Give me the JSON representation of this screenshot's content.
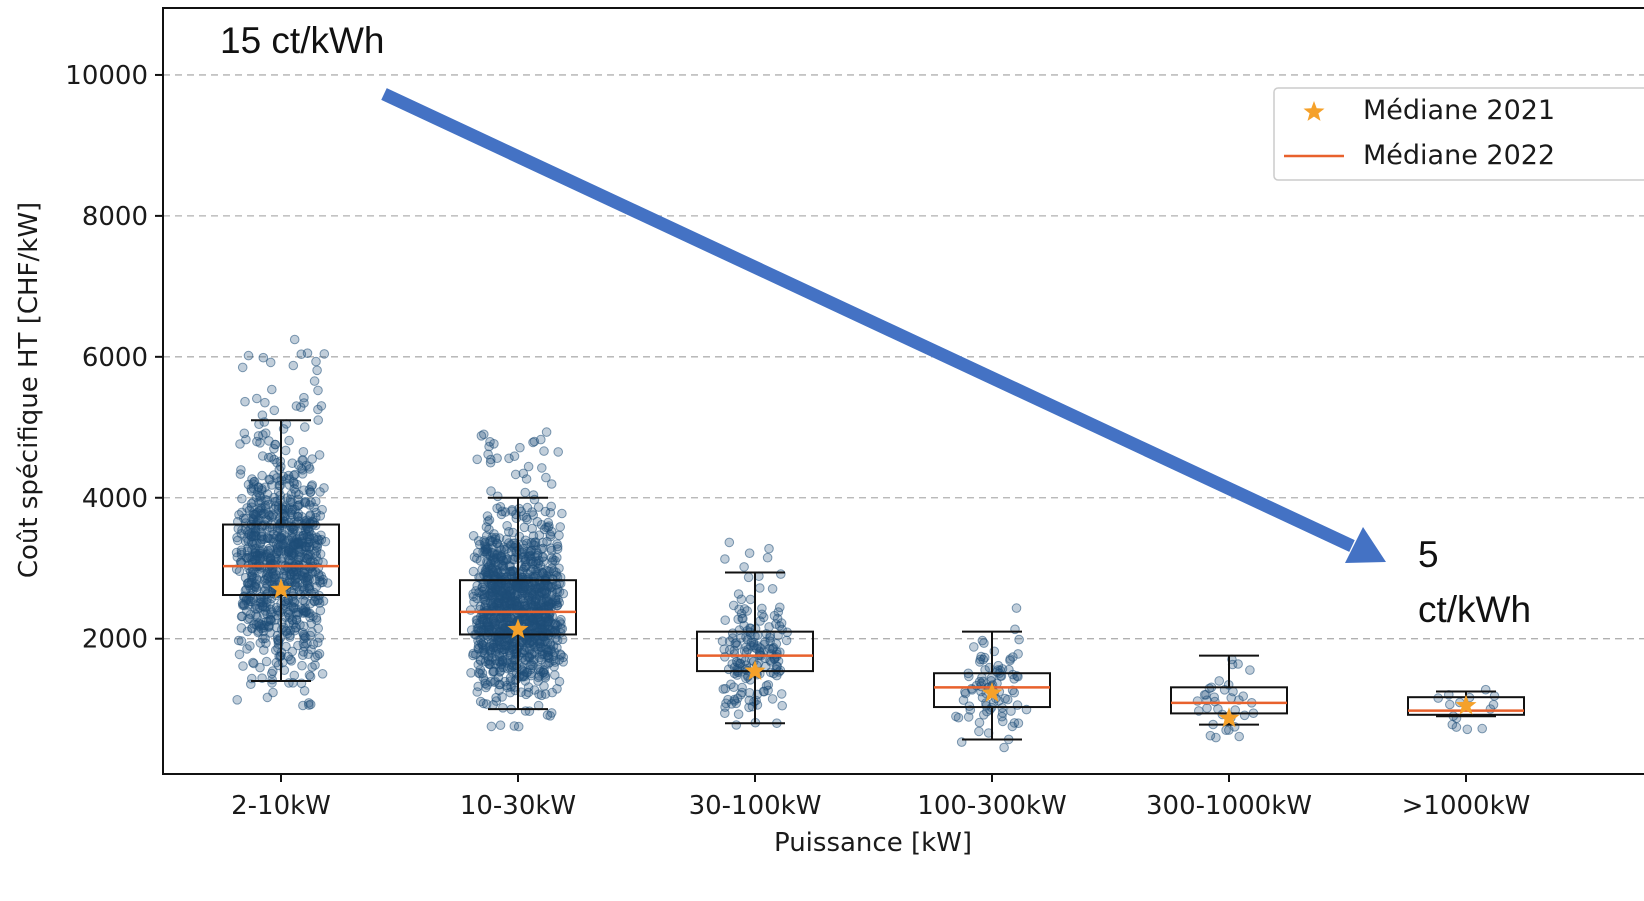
{
  "chart_data": {
    "type": "box",
    "xlabel": "Puissance [kW]",
    "ylabel": "Coût spécifique HT [CHF/kW]",
    "ylim": [
      80,
      10950
    ],
    "yticks": [
      2000,
      4000,
      6000,
      8000,
      10000
    ],
    "grid": "horizontal dashed",
    "categories": [
      "2-10kW",
      "10-30kW",
      "30-100kW",
      "100-300kW",
      "300-1000kW",
      ">1000kW"
    ],
    "boxes": [
      {
        "category": "2-10kW",
        "whisker_low": 1400,
        "q1": 2620,
        "median_2022": 3030,
        "q3": 3620,
        "whisker_high": 5100,
        "median_2021": 2700
      },
      {
        "category": "10-30kW",
        "whisker_low": 1000,
        "q1": 2060,
        "median_2022": 2380,
        "q3": 2830,
        "whisker_high": 4000,
        "median_2021": 2130
      },
      {
        "category": "30-100kW",
        "whisker_low": 800,
        "q1": 1540,
        "median_2022": 1760,
        "q3": 2100,
        "whisker_high": 2940,
        "median_2021": 1540
      },
      {
        "category": "100-300kW",
        "whisker_low": 570,
        "q1": 1030,
        "median_2022": 1310,
        "q3": 1510,
        "whisker_high": 2100,
        "median_2021": 1230
      },
      {
        "category": "300-1000kW",
        "whisker_low": 780,
        "q1": 940,
        "median_2022": 1090,
        "q3": 1310,
        "whisker_high": 1760,
        "median_2021": 870
      },
      {
        "category": ">1000kW",
        "whisker_low": 900,
        "q1": 920,
        "median_2022": 980,
        "q3": 1170,
        "whisker_high": 1250,
        "median_2021": 1050
      }
    ],
    "point_counts": [
      900,
      1200,
      180,
      90,
      35,
      15
    ],
    "legend": {
      "position": "top-right",
      "entries": [
        {
          "label": "Médiane 2021",
          "marker": "star",
          "color": "#f5a12a"
        },
        {
          "label": "Médiane 2022",
          "marker": "line",
          "color": "#e8612c"
        }
      ]
    },
    "annotations": [
      {
        "text": "15 ct/kWh"
      },
      {
        "text": "5"
      },
      {
        "text": "ct/kWh"
      }
    ],
    "colors": {
      "points": "#1f4e79",
      "arrow": "#4472c4",
      "median_2021": "#f5a12a",
      "median_2022": "#e8612c",
      "grid": "#b0b0b0"
    }
  }
}
